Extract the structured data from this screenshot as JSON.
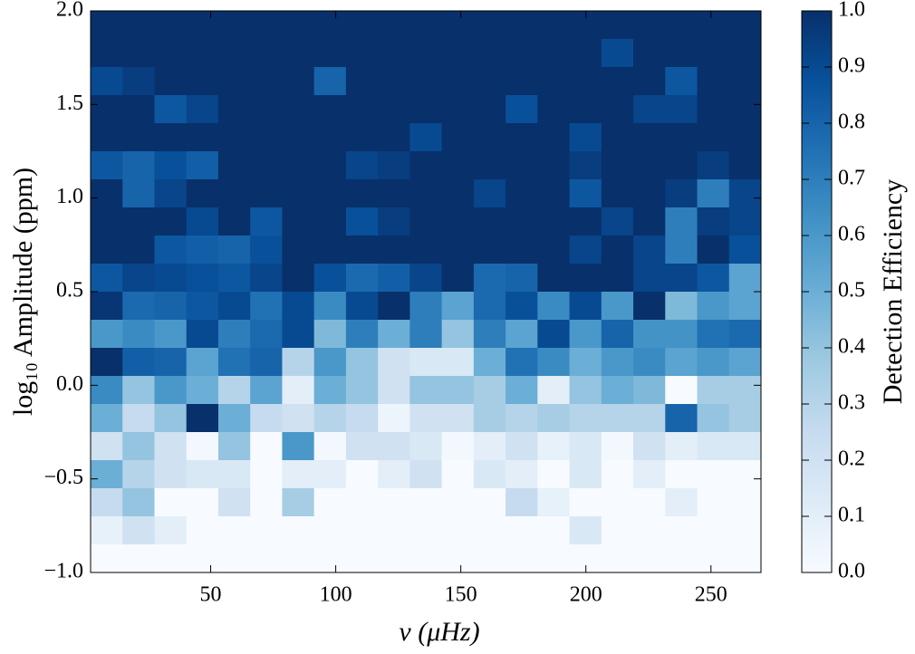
{
  "chart_data": {
    "type": "heatmap",
    "xlabel": "ν (μHz)",
    "ylabel": "log₁₀ Amplitude (ppm)",
    "colorbar_label": "Detection Efficiency",
    "xlim": [
      2,
      270
    ],
    "ylim": [
      -1,
      2
    ],
    "xticks": [
      50,
      100,
      150,
      200,
      250
    ],
    "yticks": [
      {
        "value": -1,
        "label": "−1.0"
      },
      {
        "value": -0.5,
        "label": "−0.5"
      },
      {
        "value": 0,
        "label": "0.0"
      },
      {
        "value": 0.5,
        "label": "0.5"
      },
      {
        "value": 1,
        "label": "1.0"
      },
      {
        "value": 1.5,
        "label": "1.5"
      },
      {
        "value": 2,
        "label": "2.0"
      }
    ],
    "clim": [
      0,
      1
    ],
    "cticks": [
      {
        "value": 0,
        "label": "0.0"
      },
      {
        "value": 0.1,
        "label": "0.1"
      },
      {
        "value": 0.2,
        "label": "0.2"
      },
      {
        "value": 0.3,
        "label": "0.3"
      },
      {
        "value": 0.4,
        "label": "0.4"
      },
      {
        "value": 0.5,
        "label": "0.5"
      },
      {
        "value": 0.6,
        "label": "0.6"
      },
      {
        "value": 0.7,
        "label": "0.7"
      },
      {
        "value": 0.8,
        "label": "0.8"
      },
      {
        "value": 0.9,
        "label": "0.9"
      },
      {
        "value": 1,
        "label": "1.0"
      }
    ],
    "colormap": [
      "#f7fbff",
      "#deebf7",
      "#c6dbef",
      "#9ecae1",
      "#6baed6",
      "#4292c6",
      "#2171b5",
      "#08519c",
      "#08306b"
    ],
    "z": [
      [
        1,
        1,
        1,
        1,
        1,
        1,
        1,
        1,
        1,
        1,
        1,
        1,
        1,
        1,
        1,
        1,
        1,
        1,
        1,
        1,
        1
      ],
      [
        1,
        1,
        1,
        1,
        1,
        1,
        1,
        1,
        1,
        1,
        1,
        1,
        1,
        1,
        1,
        1,
        0.9,
        1,
        1,
        1,
        1
      ],
      [
        0.9,
        0.95,
        1,
        1,
        1,
        1,
        1,
        0.8,
        1,
        1,
        1,
        1,
        1,
        1,
        1,
        1,
        1,
        1,
        0.85,
        1,
        1
      ],
      [
        1,
        1,
        0.85,
        0.92,
        1,
        1,
        1,
        1,
        1,
        1,
        1,
        1,
        1,
        0.88,
        1,
        1,
        1,
        0.92,
        0.92,
        1,
        1
      ],
      [
        1,
        1,
        1,
        1,
        1,
        1,
        1,
        1,
        1,
        1,
        0.9,
        1,
        1,
        1,
        1,
        0.9,
        1,
        1,
        1,
        1,
        1
      ],
      [
        0.85,
        0.8,
        0.88,
        0.82,
        1,
        1,
        1,
        1,
        0.92,
        0.95,
        1,
        1,
        1,
        1,
        1,
        0.95,
        1,
        1,
        1,
        0.95,
        1
      ],
      [
        1,
        0.8,
        0.92,
        1,
        1,
        1,
        1,
        1,
        1,
        1,
        1,
        1,
        0.92,
        1,
        1,
        0.85,
        1,
        1,
        0.95,
        0.7,
        0.92
      ],
      [
        1,
        1,
        1,
        0.9,
        1,
        0.85,
        1,
        1,
        0.88,
        0.95,
        1,
        1,
        1,
        1,
        1,
        1,
        0.92,
        1,
        0.7,
        0.95,
        0.92
      ],
      [
        1,
        1,
        0.85,
        0.82,
        0.8,
        0.88,
        1,
        1,
        1,
        1,
        1,
        1,
        1,
        1,
        1,
        0.92,
        1,
        0.92,
        0.7,
        1,
        0.88
      ],
      [
        0.85,
        0.92,
        0.9,
        0.88,
        0.85,
        0.92,
        1,
        0.88,
        0.78,
        0.82,
        0.92,
        1,
        0.78,
        0.8,
        1,
        1,
        1,
        0.92,
        0.92,
        0.85,
        0.55
      ],
      [
        0.98,
        0.78,
        0.8,
        0.85,
        0.9,
        0.75,
        0.9,
        0.65,
        0.9,
        1,
        0.7,
        0.55,
        0.78,
        0.88,
        0.65,
        0.9,
        0.6,
        1,
        0.45,
        0.6,
        0.55
      ],
      [
        0.6,
        0.65,
        0.6,
        0.9,
        0.7,
        0.78,
        0.9,
        0.45,
        0.7,
        0.5,
        0.7,
        0.4,
        0.7,
        0.55,
        0.9,
        0.6,
        0.8,
        0.62,
        0.62,
        0.75,
        0.78
      ],
      [
        1,
        0.82,
        0.8,
        0.55,
        0.75,
        0.8,
        0.3,
        0.6,
        0.4,
        0.2,
        0.15,
        0.15,
        0.5,
        0.75,
        0.65,
        0.5,
        0.6,
        0.65,
        0.55,
        0.6,
        0.55
      ],
      [
        0.65,
        0.4,
        0.6,
        0.5,
        0.3,
        0.55,
        0.1,
        0.5,
        0.4,
        0.2,
        0.4,
        0.4,
        0.35,
        0.5,
        0.1,
        0.4,
        0.5,
        0.45,
        0,
        0.35,
        0.35
      ],
      [
        0.5,
        0.25,
        0.4,
        1,
        0.5,
        0.25,
        0.2,
        0.3,
        0.25,
        0.05,
        0.2,
        0.2,
        0.35,
        0.3,
        0.35,
        0.3,
        0.3,
        0.3,
        0.8,
        0.4,
        0.35
      ],
      [
        0.2,
        0.4,
        0.2,
        0.02,
        0.4,
        0,
        0.6,
        0.02,
        0.2,
        0.2,
        0.15,
        0.02,
        0.1,
        0.2,
        0.08,
        0.15,
        0.02,
        0.2,
        0.1,
        0.15,
        0.15
      ],
      [
        0.5,
        0.3,
        0.2,
        0.15,
        0.15,
        0,
        0.1,
        0.1,
        0,
        0.1,
        0.2,
        0,
        0.15,
        0.1,
        0,
        0.15,
        0,
        0.1,
        0,
        0,
        0
      ],
      [
        0.25,
        0.4,
        0,
        0,
        0.2,
        0,
        0.35,
        0,
        0,
        0,
        0,
        0,
        0,
        0.25,
        0.08,
        0,
        0,
        0,
        0.1,
        0,
        0
      ],
      [
        0.08,
        0.2,
        0.1,
        0,
        0,
        0,
        0,
        0,
        0,
        0,
        0,
        0,
        0,
        0,
        0,
        0.15,
        0,
        0,
        0,
        0,
        0
      ],
      [
        0,
        0,
        0,
        0,
        0,
        0,
        0,
        0,
        0,
        0,
        0,
        0,
        0,
        0,
        0,
        0,
        0,
        0,
        0,
        0,
        0
      ]
    ]
  }
}
